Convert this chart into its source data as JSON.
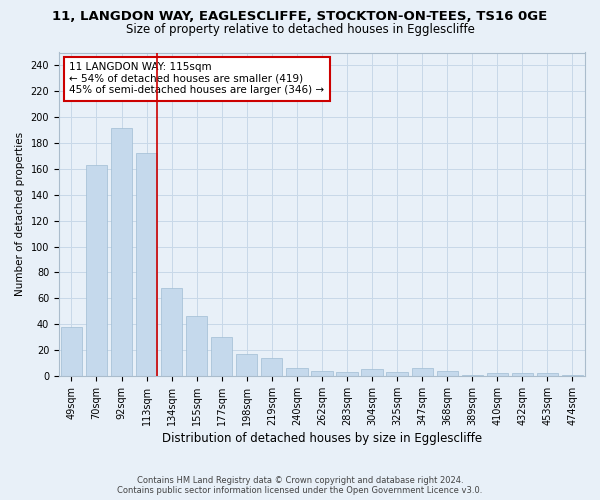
{
  "title_line1": "11, LANGDON WAY, EAGLESCLIFFE, STOCKTON-ON-TEES, TS16 0GE",
  "title_line2": "Size of property relative to detached houses in Egglescliffe",
  "xlabel": "Distribution of detached houses by size in Egglescliffe",
  "ylabel": "Number of detached properties",
  "categories": [
    "49sqm",
    "70sqm",
    "92sqm",
    "113sqm",
    "134sqm",
    "155sqm",
    "177sqm",
    "198sqm",
    "219sqm",
    "240sqm",
    "262sqm",
    "283sqm",
    "304sqm",
    "325sqm",
    "347sqm",
    "368sqm",
    "389sqm",
    "410sqm",
    "432sqm",
    "453sqm",
    "474sqm"
  ],
  "values": [
    38,
    163,
    192,
    172,
    68,
    46,
    30,
    17,
    14,
    6,
    4,
    3,
    5,
    3,
    6,
    4,
    1,
    2,
    2,
    2,
    1
  ],
  "bar_color": "#c5d9ec",
  "bar_edge_color": "#a0bdd4",
  "grid_color": "#c8d8e8",
  "background_color": "#e8f0f8",
  "vline_color": "#cc0000",
  "vline_x_index": 3.43,
  "annotation_text": "11 LANGDON WAY: 115sqm\n← 54% of detached houses are smaller (419)\n45% of semi-detached houses are larger (346) →",
  "annotation_box_color": "#ffffff",
  "annotation_box_edge": "#cc0000",
  "ylim": [
    0,
    250
  ],
  "yticks": [
    0,
    20,
    40,
    60,
    80,
    100,
    120,
    140,
    160,
    180,
    200,
    220,
    240
  ],
  "footer_line1": "Contains HM Land Registry data © Crown copyright and database right 2024.",
  "footer_line2": "Contains public sector information licensed under the Open Government Licence v3.0.",
  "title_fontsize": 9.5,
  "subtitle_fontsize": 8.5,
  "tick_fontsize": 7,
  "xlabel_fontsize": 8.5,
  "ylabel_fontsize": 7.5,
  "annotation_fontsize": 7.5,
  "footer_fontsize": 6.0
}
